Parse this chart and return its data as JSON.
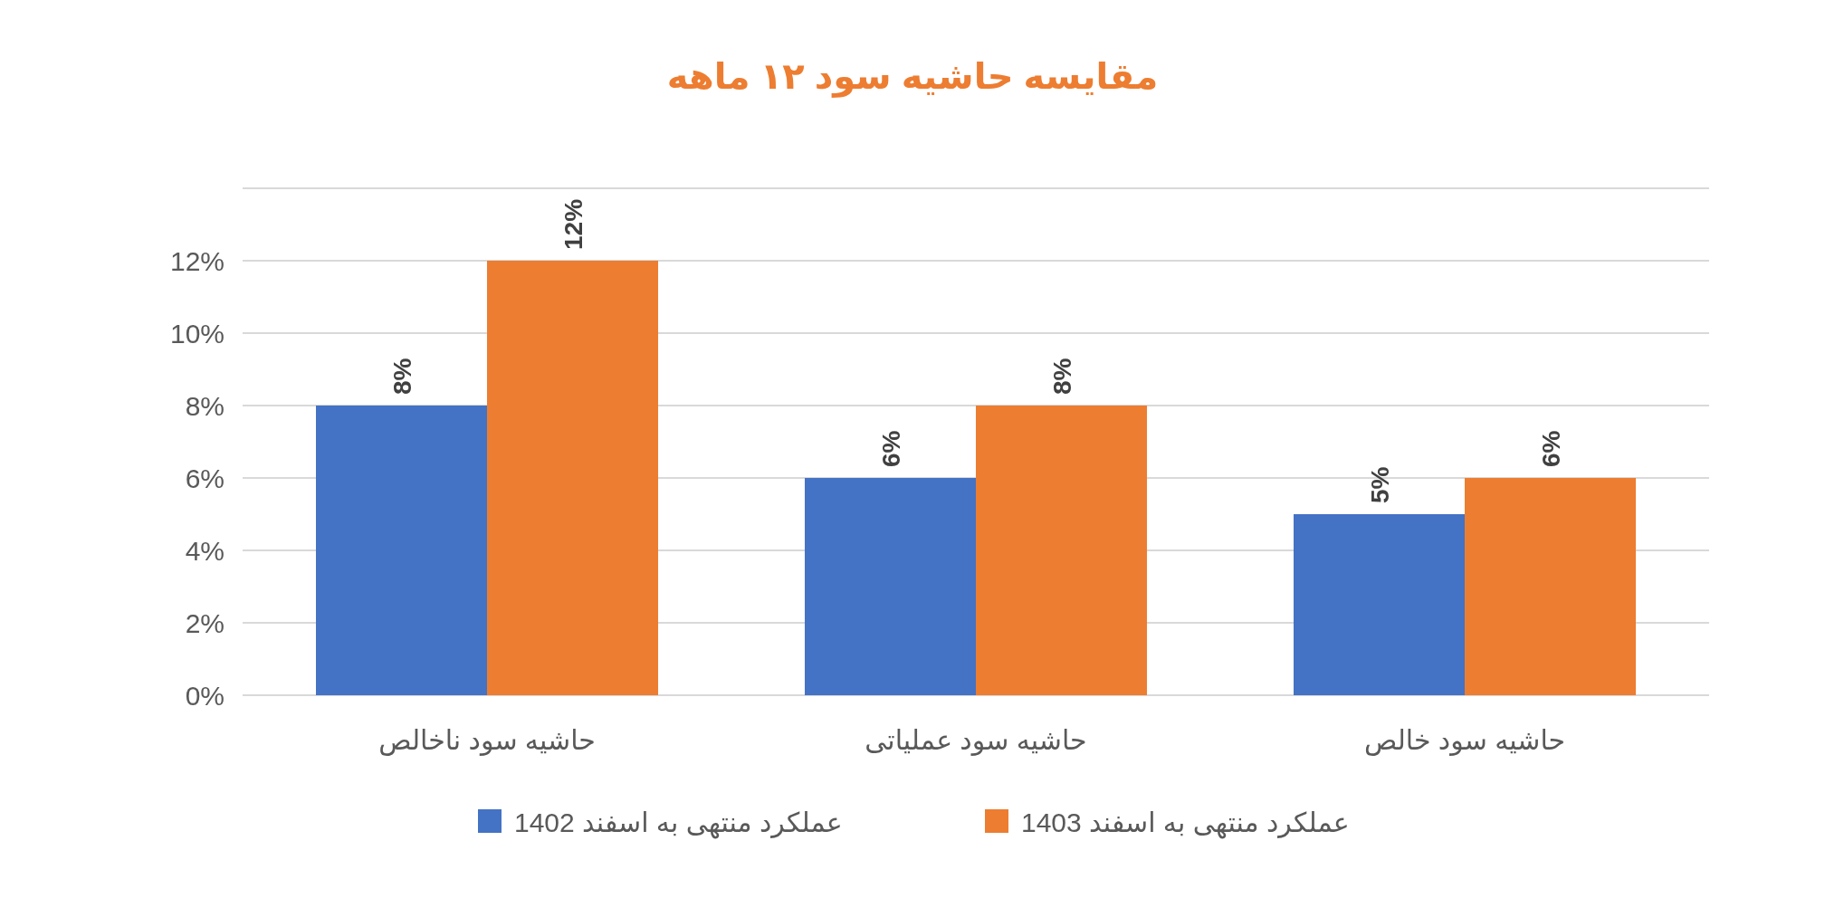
{
  "chart_data": {
    "type": "bar",
    "title": "مقایسه حاشیه سود ۱۲ ماهه",
    "categories": [
      "حاشیه سود ناخالص",
      "حاشیه سود عملیاتی",
      "حاشیه سود خالص"
    ],
    "series": [
      {
        "name": "عملکرد منتهی به اسفند 1402",
        "color": "#4472c4",
        "values": [
          8,
          6,
          5
        ],
        "value_labels": [
          "8%",
          "6%",
          "5%"
        ]
      },
      {
        "name": "عملکرد منتهی به اسفند 1403",
        "color": "#ed7d31",
        "values": [
          12,
          8,
          6
        ],
        "value_labels": [
          "12%",
          "8%",
          "6%"
        ]
      }
    ],
    "ylim": [
      0,
      14
    ],
    "yticks": [
      {
        "value": 0,
        "label": "0%"
      },
      {
        "value": 2,
        "label": "2%"
      },
      {
        "value": 4,
        "label": "4%"
      },
      {
        "value": 6,
        "label": "6%"
      },
      {
        "value": 8,
        "label": "8%"
      },
      {
        "value": 10,
        "label": "10%"
      },
      {
        "value": 12,
        "label": "12%"
      },
      {
        "value": 14,
        "label": null
      }
    ],
    "grid": "y",
    "legend": "bottom"
  }
}
